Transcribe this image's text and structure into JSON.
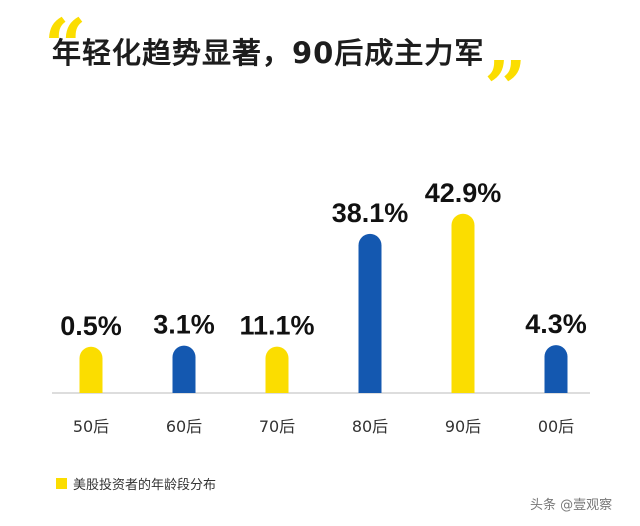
{
  "title": "年轻化趋势显著，90后成主力军",
  "colors": {
    "yellow": "#FBDD00",
    "blue": "#1458B0",
    "axis": "#999999",
    "text": "#111111"
  },
  "chart_data": {
    "type": "bar",
    "categories": [
      "50后",
      "60后",
      "70后",
      "80后",
      "90后",
      "00后"
    ],
    "values": [
      0.5,
      3.1,
      11.1,
      38.1,
      42.9,
      4.3
    ],
    "value_labels": [
      "0.5%",
      "3.1%",
      "11.1%",
      "38.1%",
      "42.9%",
      "4.3%"
    ],
    "bar_colors": [
      "#FBDD00",
      "#1458B0",
      "#FBDD00",
      "#1458B0",
      "#FBDD00",
      "#1458B0"
    ],
    "legend": [
      "美股投资者的年龄段分布"
    ],
    "legend_position": "bottom-left",
    "grid": false
  },
  "source": "头条 @壹观察"
}
